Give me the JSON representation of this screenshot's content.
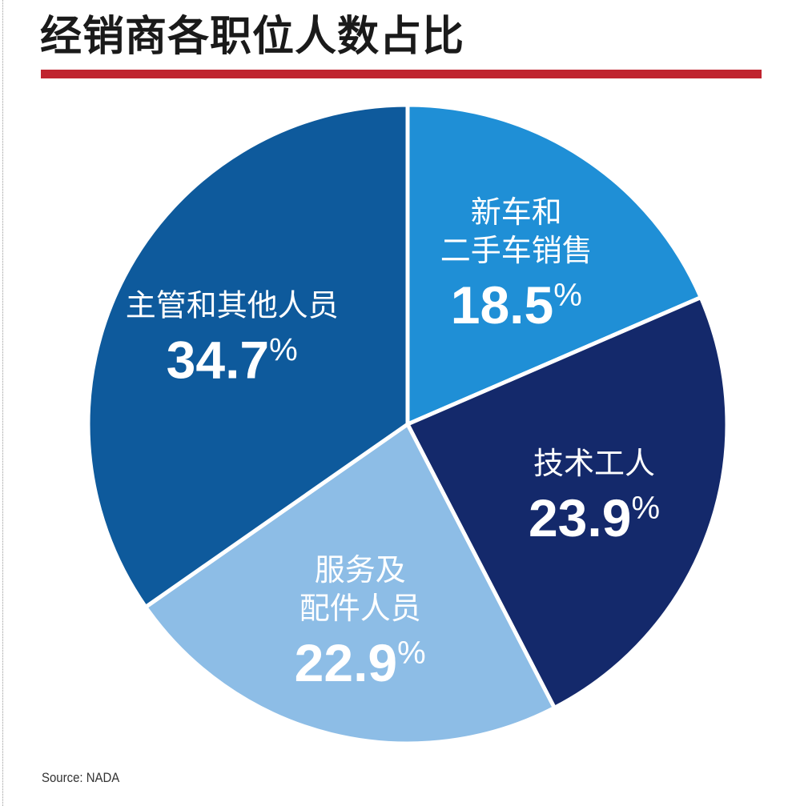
{
  "header": {
    "title": "经销商各职位人数占比"
  },
  "footer": {
    "source": "Source: NADA"
  },
  "chart_data": {
    "type": "pie",
    "title": "经销商各职位人数占比",
    "unit": "%",
    "start": "12 o'clock, clockwise",
    "slices": [
      {
        "label_lines": [
          "新车和",
          "二手车销售"
        ],
        "value": 18.5,
        "display": "18.5%",
        "color": "#1f8fd6"
      },
      {
        "label_lines": [
          "技术工人"
        ],
        "value": 23.9,
        "display": "23.9%",
        "color": "#14296b"
      },
      {
        "label_lines": [
          "服务及",
          "配件人员"
        ],
        "value": 22.9,
        "display": "22.9%",
        "color": "#8dbde6"
      },
      {
        "label_lines": [
          "主管和其他人员"
        ],
        "value": 34.7,
        "display": "34.7%",
        "color": "#0e5a9c"
      }
    ],
    "source": "Source: NADA"
  }
}
